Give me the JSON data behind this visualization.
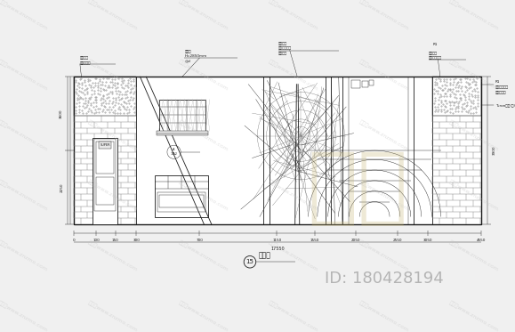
{
  "bg_color": "#f0f0f0",
  "draw_bg": "#ffffff",
  "line_color": "#1a1a1a",
  "gray_mid": "#888888",
  "gray_light": "#cccccc",
  "gray_dark": "#555555",
  "watermark_zh_color": "#c8b87a",
  "watermark_site_color": "#c0c0c0",
  "id_color": "#aaaaaa",
  "fig_width": 5.79,
  "fig_height": 3.73,
  "dpi": 100,
  "title_circle_num": "15",
  "title_text": "正立面",
  "id_text": "ID: 180428194",
  "watermark_zh": "知本",
  "watermark_site_text": "知本网www.znzmo.com"
}
